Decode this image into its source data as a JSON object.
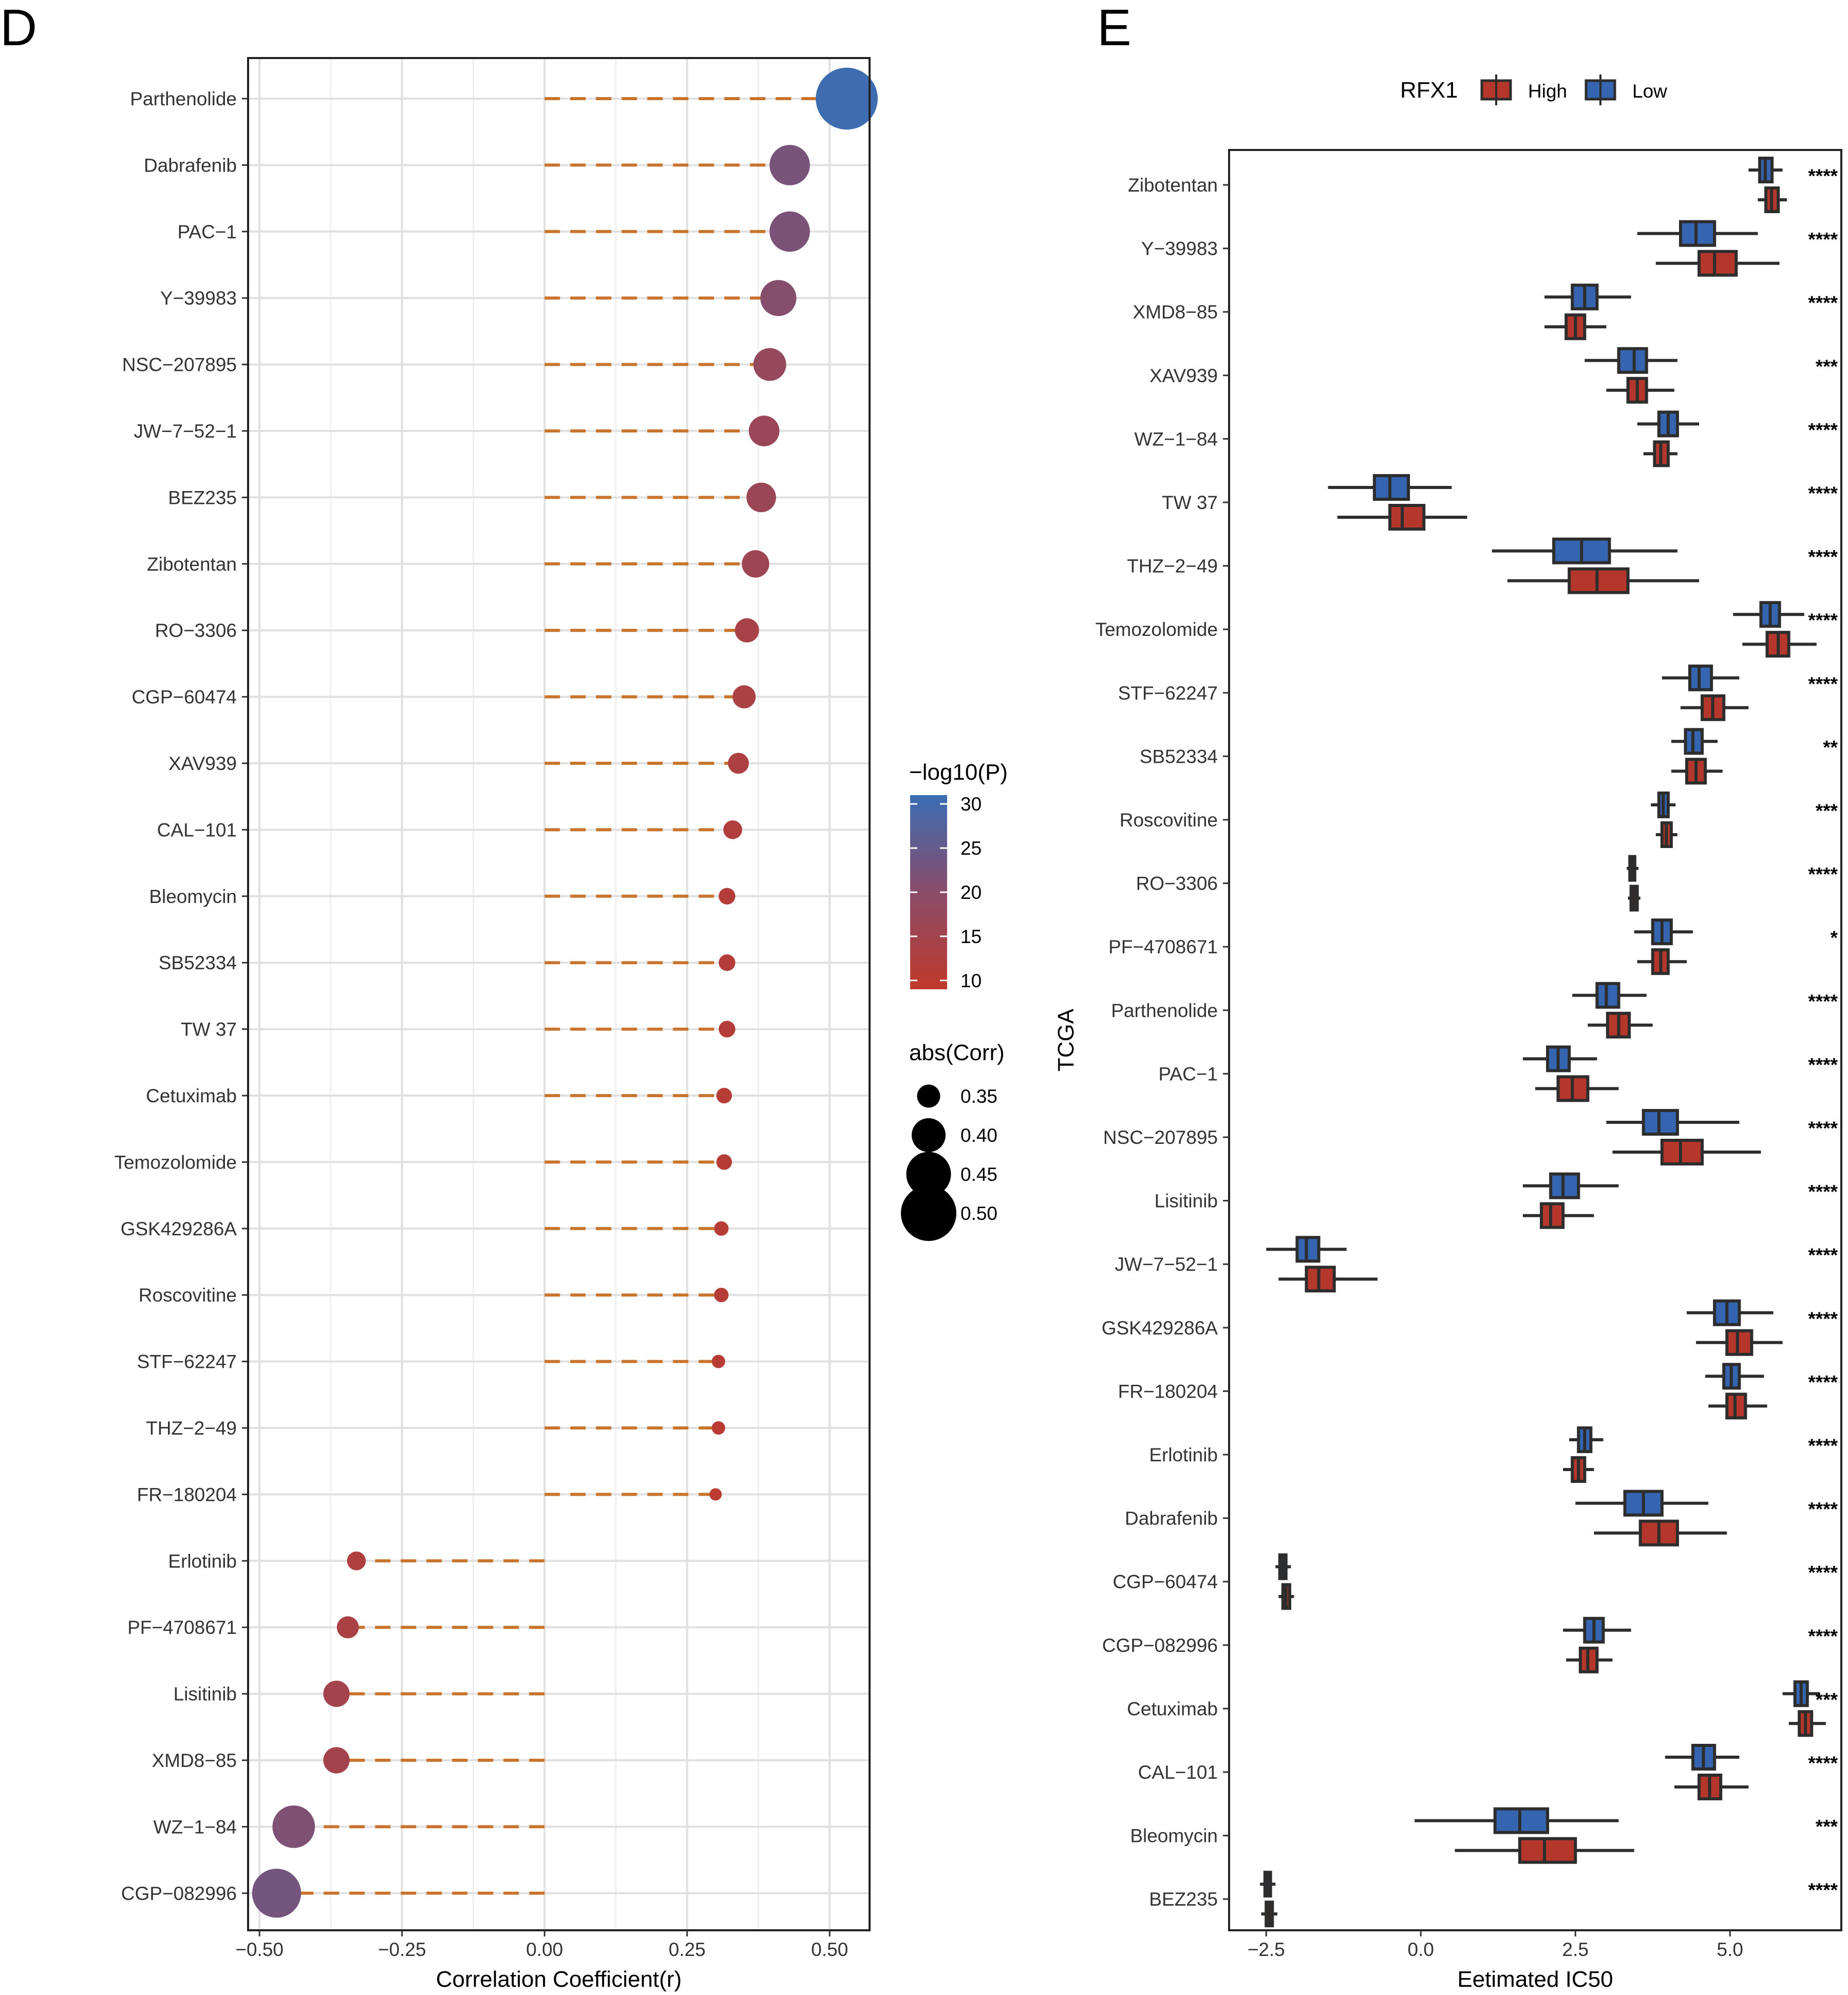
{
  "colors": {
    "stem": "#c8742d",
    "high": "#b5372b",
    "low": "#3565b0",
    "scale_low": "#c0392b",
    "scale_mid": "#8a4c6a",
    "scale_high": "#3a6db3",
    "box_stroke": "#2d2d2d",
    "grid_major": "#e0e0e0",
    "grid_minor": "#efefef"
  },
  "chart_data": [
    {
      "panel": "D",
      "type": "lollipop",
      "xlabel": "Correlation Coefficient(r)",
      "xlim": [
        -0.52,
        0.57
      ],
      "xticks": [
        -0.5,
        -0.25,
        0.0,
        0.25,
        0.5
      ],
      "xtick_labels": [
        "-0.50",
        "-0.25",
        "0.00",
        "0.25",
        "0.50"
      ],
      "drugs": [
        {
          "name": "Parthenolide",
          "r": 0.53,
          "logp": 30.5
        },
        {
          "name": "Dabrafenib",
          "r": 0.43,
          "logp": 22.5
        },
        {
          "name": "PAC-1",
          "r": 0.43,
          "logp": 22
        },
        {
          "name": "Y-39983",
          "r": 0.41,
          "logp": 20.5
        },
        {
          "name": "NSC-207895",
          "r": 0.395,
          "logp": 17.5
        },
        {
          "name": "JW-7-52-1",
          "r": 0.385,
          "logp": 17
        },
        {
          "name": "BEZ235",
          "r": 0.38,
          "logp": 16.5
        },
        {
          "name": "Zibotentan",
          "r": 0.37,
          "logp": 16
        },
        {
          "name": "RO-3306",
          "r": 0.355,
          "logp": 14
        },
        {
          "name": "CGP-60474",
          "r": 0.35,
          "logp": 13.5
        },
        {
          "name": "XAV939",
          "r": 0.34,
          "logp": 13
        },
        {
          "name": "CAL-101",
          "r": 0.33,
          "logp": 12
        },
        {
          "name": "Bleomycin",
          "r": 0.32,
          "logp": 11.5
        },
        {
          "name": "SB52334",
          "r": 0.32,
          "logp": 11.5
        },
        {
          "name": "TW 37",
          "r": 0.32,
          "logp": 11.5
        },
        {
          "name": "Cetuximab",
          "r": 0.315,
          "logp": 11
        },
        {
          "name": "Temozolomide",
          "r": 0.315,
          "logp": 11
        },
        {
          "name": "GSK429286A",
          "r": 0.31,
          "logp": 10.8
        },
        {
          "name": "Roscovitine",
          "r": 0.31,
          "logp": 10.8
        },
        {
          "name": "STF-62247",
          "r": 0.305,
          "logp": 10.5
        },
        {
          "name": "THZ-2-49",
          "r": 0.305,
          "logp": 10.3
        },
        {
          "name": "FR-180204",
          "r": 0.3,
          "logp": 10
        },
        {
          "name": "Erlotinib",
          "r": -0.33,
          "logp": 12.5
        },
        {
          "name": "PF-4708671",
          "r": -0.345,
          "logp": 13.5
        },
        {
          "name": "Lisitinib",
          "r": -0.365,
          "logp": 15
        },
        {
          "name": "XMD8-85",
          "r": -0.365,
          "logp": 15
        },
        {
          "name": "WZ-1-84",
          "r": -0.44,
          "logp": 21.5
        },
        {
          "name": "CGP-082996",
          "r": -0.47,
          "logp": 23
        }
      ],
      "legend_color": {
        "title": "-log10(P)",
        "ticks": [
          "30",
          "25",
          "20",
          "15",
          "10"
        ],
        "range": [
          9,
          31
        ]
      },
      "legend_size": {
        "title": "abs(Corr)",
        "ticks": [
          "0.35",
          "0.40",
          "0.45",
          "0.50"
        ],
        "values": [
          0.35,
          0.4,
          0.45,
          0.5
        ]
      }
    },
    {
      "panel": "E",
      "type": "boxplot-horizontal",
      "xlabel": "Eetimated IC50",
      "ylabel": "TCGA",
      "xlim": [
        -3.1,
        6.8
      ],
      "xticks": [
        -2.5,
        0.0,
        2.5,
        5.0
      ],
      "xtick_labels": [
        "-2.5",
        "0.0",
        "2.5",
        "5.0"
      ],
      "legend": {
        "title": "RFX1",
        "items": [
          "High",
          "Low"
        ]
      },
      "drugs": [
        {
          "name": "Zibotentan",
          "sig": "****",
          "low": {
            "wlo": 5.3,
            "q1": 5.48,
            "med": 5.57,
            "q3": 5.68,
            "whi": 5.85
          },
          "high": {
            "wlo": 5.45,
            "q1": 5.58,
            "med": 5.67,
            "q3": 5.78,
            "whi": 5.92
          }
        },
        {
          "name": "Y-39983",
          "sig": "****",
          "low": {
            "wlo": 3.5,
            "q1": 4.2,
            "med": 4.45,
            "q3": 4.75,
            "whi": 5.45
          },
          "high": {
            "wlo": 3.8,
            "q1": 4.5,
            "med": 4.75,
            "q3": 5.1,
            "whi": 5.8
          }
        },
        {
          "name": "XMD8-85",
          "sig": "****",
          "low": {
            "wlo": 2.0,
            "q1": 2.45,
            "med": 2.65,
            "q3": 2.85,
            "whi": 3.4
          },
          "high": {
            "wlo": 2.0,
            "q1": 2.35,
            "med": 2.5,
            "q3": 2.65,
            "whi": 3.0
          }
        },
        {
          "name": "XAV939",
          "sig": "***",
          "low": {
            "wlo": 2.65,
            "q1": 3.2,
            "med": 3.45,
            "q3": 3.65,
            "whi": 4.15
          },
          "high": {
            "wlo": 3.0,
            "q1": 3.35,
            "med": 3.5,
            "q3": 3.65,
            "whi": 4.1
          }
        },
        {
          "name": "WZ-1-84",
          "sig": "****",
          "low": {
            "wlo": 3.5,
            "q1": 3.85,
            "med": 4.0,
            "q3": 4.15,
            "whi": 4.5
          },
          "high": {
            "wlo": 3.6,
            "q1": 3.78,
            "med": 3.88,
            "q3": 4.0,
            "whi": 4.15
          }
        },
        {
          "name": "TW 37",
          "sig": "****",
          "low": {
            "wlo": -1.5,
            "q1": -0.75,
            "med": -0.5,
            "q3": -0.2,
            "whi": 0.5
          },
          "high": {
            "wlo": -1.35,
            "q1": -0.5,
            "med": -0.3,
            "q3": 0.05,
            "whi": 0.75
          }
        },
        {
          "name": "THZ-2-49",
          "sig": "****",
          "low": {
            "wlo": 1.15,
            "q1": 2.15,
            "med": 2.6,
            "q3": 3.05,
            "whi": 4.15
          },
          "high": {
            "wlo": 1.4,
            "q1": 2.4,
            "med": 2.85,
            "q3": 3.35,
            "whi": 4.5
          }
        },
        {
          "name": "Temozolomide",
          "sig": "****",
          "low": {
            "wlo": 5.05,
            "q1": 5.5,
            "med": 5.65,
            "q3": 5.8,
            "whi": 6.2
          },
          "high": {
            "wlo": 5.2,
            "q1": 5.6,
            "med": 5.78,
            "q3": 5.95,
            "whi": 6.4
          }
        },
        {
          "name": "STF-62247",
          "sig": "****",
          "low": {
            "wlo": 3.9,
            "q1": 4.35,
            "med": 4.5,
            "q3": 4.7,
            "whi": 5.15
          },
          "high": {
            "wlo": 4.2,
            "q1": 4.55,
            "med": 4.72,
            "q3": 4.9,
            "whi": 5.3
          }
        },
        {
          "name": "SB52334",
          "sig": "**",
          "low": {
            "wlo": 4.05,
            "q1": 4.28,
            "med": 4.4,
            "q3": 4.55,
            "whi": 4.8
          },
          "high": {
            "wlo": 4.05,
            "q1": 4.3,
            "med": 4.45,
            "q3": 4.6,
            "whi": 4.88
          }
        },
        {
          "name": "Roscovitine",
          "sig": "***",
          "low": {
            "wlo": 3.72,
            "q1": 3.85,
            "med": 3.92,
            "q3": 4.0,
            "whi": 4.12
          },
          "high": {
            "wlo": 3.8,
            "q1": 3.9,
            "med": 3.97,
            "q3": 4.05,
            "whi": 4.15
          }
        },
        {
          "name": "RO-3306",
          "sig": "****",
          "low": {
            "wlo": 3.33,
            "q1": 3.38,
            "med": 3.42,
            "q3": 3.46,
            "whi": 3.52
          },
          "high": {
            "wlo": 3.35,
            "q1": 3.4,
            "med": 3.45,
            "q3": 3.5,
            "whi": 3.55
          }
        },
        {
          "name": "PF-4708671",
          "sig": "*",
          "low": {
            "wlo": 3.45,
            "q1": 3.75,
            "med": 3.9,
            "q3": 4.05,
            "whi": 4.4
          },
          "high": {
            "wlo": 3.5,
            "q1": 3.75,
            "med": 3.88,
            "q3": 4.0,
            "whi": 4.3
          }
        },
        {
          "name": "Parthenolide",
          "sig": "****",
          "low": {
            "wlo": 2.45,
            "q1": 2.85,
            "med": 3.0,
            "q3": 3.2,
            "whi": 3.65
          },
          "high": {
            "wlo": 2.7,
            "q1": 3.02,
            "med": 3.2,
            "q3": 3.37,
            "whi": 3.75
          }
        },
        {
          "name": "PAC-1",
          "sig": "****",
          "low": {
            "wlo": 1.65,
            "q1": 2.05,
            "med": 2.22,
            "q3": 2.4,
            "whi": 2.85
          },
          "high": {
            "wlo": 1.85,
            "q1": 2.22,
            "med": 2.45,
            "q3": 2.7,
            "whi": 3.2
          }
        },
        {
          "name": "NSC-207895",
          "sig": "****",
          "low": {
            "wlo": 3.0,
            "q1": 3.6,
            "med": 3.85,
            "q3": 4.15,
            "whi": 5.15
          },
          "high": {
            "wlo": 3.1,
            "q1": 3.9,
            "med": 4.2,
            "q3": 4.55,
            "whi": 5.5
          }
        },
        {
          "name": "Lisitinib",
          "sig": "****",
          "low": {
            "wlo": 1.65,
            "q1": 2.1,
            "med": 2.3,
            "q3": 2.55,
            "whi": 3.2
          },
          "high": {
            "wlo": 1.65,
            "q1": 1.95,
            "med": 2.1,
            "q3": 2.3,
            "whi": 2.8
          }
        },
        {
          "name": "JW-7-52-1",
          "sig": "****",
          "low": {
            "wlo": -2.5,
            "q1": -2.0,
            "med": -1.85,
            "q3": -1.65,
            "whi": -1.2
          },
          "high": {
            "wlo": -2.3,
            "q1": -1.85,
            "med": -1.65,
            "q3": -1.4,
            "whi": -0.7
          }
        },
        {
          "name": "GSK429286A",
          "sig": "****",
          "low": {
            "wlo": 4.3,
            "q1": 4.75,
            "med": 4.95,
            "q3": 5.15,
            "whi": 5.7
          },
          "high": {
            "wlo": 4.45,
            "q1": 4.95,
            "med": 5.12,
            "q3": 5.35,
            "whi": 5.85
          }
        },
        {
          "name": "FR-180204",
          "sig": "****",
          "low": {
            "wlo": 4.6,
            "q1": 4.9,
            "med": 5.02,
            "q3": 5.15,
            "whi": 5.55
          },
          "high": {
            "wlo": 4.65,
            "q1": 4.95,
            "med": 5.08,
            "q3": 5.25,
            "whi": 5.6
          }
        },
        {
          "name": "Erlotinib",
          "sig": "****",
          "low": {
            "wlo": 2.4,
            "q1": 2.55,
            "med": 2.65,
            "q3": 2.75,
            "whi": 2.95
          },
          "high": {
            "wlo": 2.3,
            "q1": 2.45,
            "med": 2.55,
            "q3": 2.65,
            "whi": 2.8
          }
        },
        {
          "name": "Dabrafenib",
          "sig": "****",
          "low": {
            "wlo": 2.5,
            "q1": 3.3,
            "med": 3.6,
            "q3": 3.9,
            "whi": 4.65
          },
          "high": {
            "wlo": 2.8,
            "q1": 3.55,
            "med": 3.85,
            "q3": 4.15,
            "whi": 4.95
          }
        },
        {
          "name": "CGP-60474",
          "sig": "****",
          "low": {
            "wlo": -2.35,
            "q1": -2.28,
            "med": -2.23,
            "q3": -2.18,
            "whi": -2.1
          },
          "high": {
            "wlo": -2.3,
            "q1": -2.23,
            "med": -2.18,
            "q3": -2.12,
            "whi": -2.05
          }
        },
        {
          "name": "CGP-082996",
          "sig": "****",
          "low": {
            "wlo": 2.3,
            "q1": 2.65,
            "med": 2.8,
            "q3": 2.95,
            "whi": 3.4
          },
          "high": {
            "wlo": 2.35,
            "q1": 2.58,
            "med": 2.7,
            "q3": 2.85,
            "whi": 3.1
          }
        },
        {
          "name": "Cetuximab",
          "sig": "***",
          "low": {
            "wlo": 5.85,
            "q1": 6.05,
            "med": 6.15,
            "q3": 6.25,
            "whi": 6.45
          },
          "high": {
            "wlo": 5.95,
            "q1": 6.12,
            "med": 6.22,
            "q3": 6.32,
            "whi": 6.55
          }
        },
        {
          "name": "CAL-101",
          "sig": "****",
          "low": {
            "wlo": 3.95,
            "q1": 4.4,
            "med": 4.57,
            "q3": 4.75,
            "whi": 5.15
          },
          "high": {
            "wlo": 4.1,
            "q1": 4.5,
            "med": 4.67,
            "q3": 4.85,
            "whi": 5.3
          }
        },
        {
          "name": "Bleomycin",
          "sig": "***",
          "low": {
            "wlo": -0.1,
            "q1": 1.2,
            "med": 1.6,
            "q3": 2.05,
            "whi": 3.2
          },
          "high": {
            "wlo": 0.55,
            "q1": 1.6,
            "med": 2.0,
            "q3": 2.5,
            "whi": 3.45
          }
        },
        {
          "name": "BEZ235",
          "sig": "****",
          "low": {
            "wlo": -2.6,
            "q1": -2.52,
            "med": -2.48,
            "q3": -2.43,
            "whi": -2.35
          },
          "high": {
            "wlo": -2.58,
            "q1": -2.5,
            "med": -2.45,
            "q3": -2.4,
            "whi": -2.32
          }
        }
      ]
    }
  ]
}
